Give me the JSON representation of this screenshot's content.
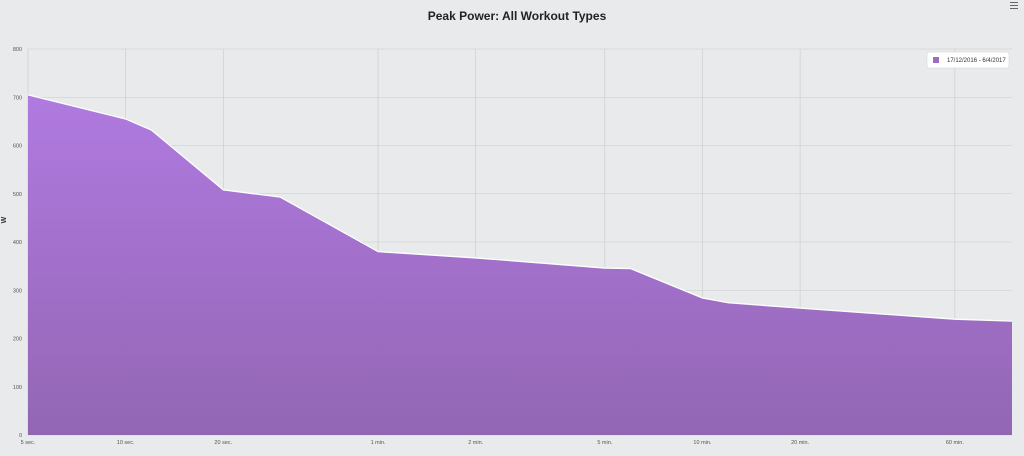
{
  "chart_data": {
    "type": "area",
    "title": "Peak Power: All Workout Types",
    "ylabel": "W",
    "xlabel": "",
    "ylim": [
      0,
      800
    ],
    "yticks": [
      0,
      100,
      200,
      300,
      400,
      500,
      600,
      700,
      800
    ],
    "xticks": [
      {
        "label": "5 sec.",
        "seconds": 5
      },
      {
        "label": "10 sec.",
        "seconds": 10
      },
      {
        "label": "20 sec.",
        "seconds": 20
      },
      {
        "label": "1 min.",
        "seconds": 60
      },
      {
        "label": "2 min.",
        "seconds": 120
      },
      {
        "label": "5 min.",
        "seconds": 300
      },
      {
        "label": "10 min.",
        "seconds": 600
      },
      {
        "label": "20 min.",
        "seconds": 1200
      },
      {
        "label": "60 min.",
        "seconds": 3600
      }
    ],
    "x_scale": "log",
    "grid": true,
    "legend_position": "top-right",
    "series": [
      {
        "name": "17/12/2016 - 6/4/2017",
        "color": "#9b6cc4",
        "points": [
          {
            "x": 5,
            "y": 705
          },
          {
            "x": 10,
            "y": 655
          },
          {
            "x": 12,
            "y": 632
          },
          {
            "x": 20,
            "y": 508
          },
          {
            "x": 30,
            "y": 493
          },
          {
            "x": 60,
            "y": 380
          },
          {
            "x": 120,
            "y": 367
          },
          {
            "x": 300,
            "y": 346
          },
          {
            "x": 360,
            "y": 345
          },
          {
            "x": 600,
            "y": 284
          },
          {
            "x": 720,
            "y": 274
          },
          {
            "x": 1200,
            "y": 263
          },
          {
            "x": 3600,
            "y": 240
          },
          {
            "x": 5400,
            "y": 236
          }
        ]
      }
    ]
  },
  "colors": {
    "background": "#e9eaec",
    "grid": "#c9cacd",
    "area_top": "#b07ae0",
    "area_bottom": "#9366b4",
    "line": "#ffffff"
  }
}
